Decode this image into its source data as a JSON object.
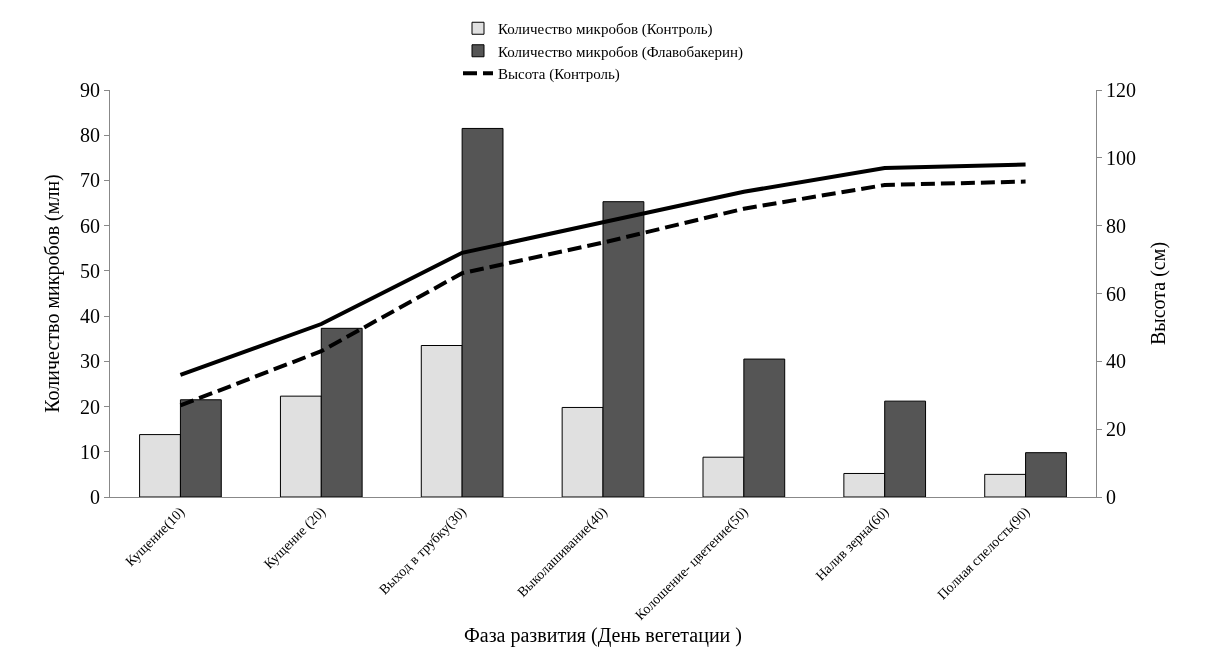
{
  "chart_data": {
    "type": "bar",
    "xlabel": "Фаза развития (День вегетации )",
    "ylabel": "Количество микробов (млн)",
    "y2label": "Высота (см)",
    "categories": [
      "Кущение(10)",
      "Кущение (20)",
      "Выход в трубку(30)",
      "Выколашивание(40)",
      "Колошение- цветение(50)",
      "Налив зерна(60)",
      "Полная спелость(90)"
    ],
    "series": [
      {
        "name": "Количество микробов (Контроль)",
        "color": "#e0e0e0",
        "values": [
          13.8,
          22.3,
          33.5,
          19.8,
          8.8,
          5.2,
          5.0
        ]
      },
      {
        "name": "Количество микробов (Флавобакерин)",
        "color": "#555555",
        "values": [
          21.5,
          37.3,
          81.5,
          65.3,
          30.5,
          21.2,
          9.8
        ]
      },
      {
        "name": "Высота (Контроль)",
        "type": "line",
        "axis": "y2",
        "line_style": "dashed",
        "color": "#000000",
        "values": [
          27,
          43,
          66,
          75,
          85,
          92,
          93
        ]
      },
      {
        "type": "line",
        "axis": "y2",
        "line_style": "solid",
        "color": "#000000",
        "values": [
          36,
          51,
          72,
          81,
          90,
          97,
          98
        ]
      }
    ],
    "ylim": [
      0,
      90
    ],
    "yticks": [
      0,
      10,
      20,
      30,
      40,
      50,
      60,
      70,
      80,
      90
    ],
    "y2lim": [
      0,
      120
    ],
    "y2ticks": [
      0,
      20,
      40,
      60,
      80,
      100,
      120
    ],
    "grid": false,
    "legend": "top",
    "marker": "none"
  }
}
